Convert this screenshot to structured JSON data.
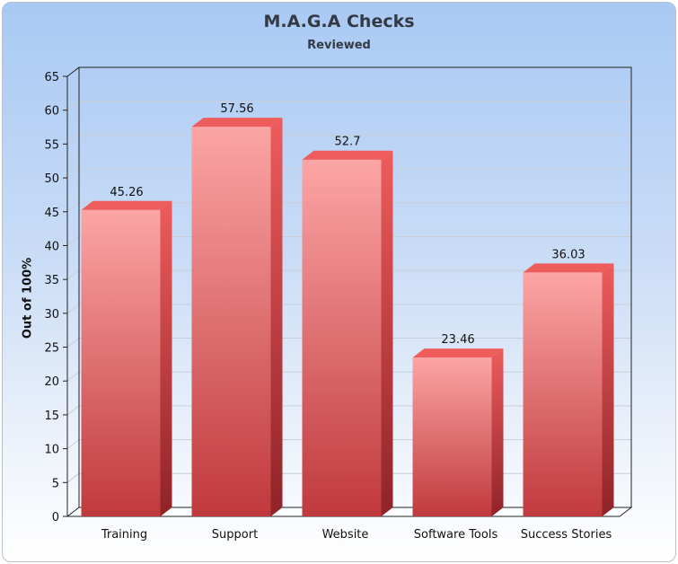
{
  "chart_data": {
    "type": "bar",
    "title": "M.A.G.A Checks",
    "subtitle": "Reviewed",
    "xlabel": "",
    "ylabel": "Out of 100%",
    "categories": [
      "Training",
      "Support",
      "Website",
      "Software Tools",
      "Success Stories"
    ],
    "values": [
      45.26,
      57.56,
      52.7,
      23.46,
      36.03
    ],
    "value_labels": [
      "45.26",
      "57.56",
      "52.7",
      "23.46",
      "36.03"
    ],
    "ylim": [
      0,
      65
    ],
    "yticks": [
      "0",
      "5",
      "10",
      "15",
      "20",
      "25",
      "30",
      "35",
      "40",
      "45",
      "50",
      "55",
      "60",
      "65"
    ],
    "grid": true,
    "colors": {
      "bar_top": "#fca5a5",
      "bar_bottom": "#c0393d",
      "bar_side": "#8f2328",
      "bar_cap": "#ee5c5c",
      "grid": "#c8ced8"
    }
  }
}
